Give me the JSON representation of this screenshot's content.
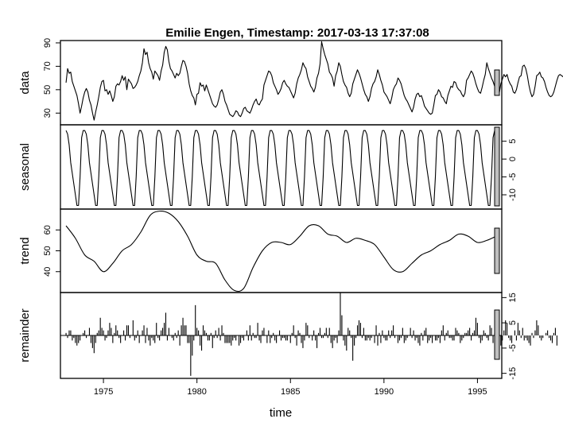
{
  "chart_data": {
    "type": "line",
    "title": "Emilie Engen, Timestamp: 2017-03-13 17:37:08",
    "xlabel": "time",
    "x_start": 1973.0,
    "x_end": 1996.0,
    "xlim": [
      1972.7,
      1996.3
    ],
    "x_ticks": [
      1975,
      1980,
      1985,
      1990,
      1995
    ],
    "panels": [
      {
        "name": "data",
        "kind": "line",
        "ylim": [
          20,
          92
        ],
        "y_ticks": [
          30,
          50,
          70,
          90
        ],
        "values": [
          56,
          68,
          64,
          65,
          57,
          53,
          49,
          45,
          38,
          30,
          36,
          43,
          48,
          51,
          48,
          41,
          37,
          30,
          24,
          31,
          37,
          44,
          52,
          57,
          58,
          49,
          50,
          46,
          49,
          45,
          40,
          44,
          53,
          55,
          54,
          57,
          62,
          58,
          61,
          50,
          59,
          57,
          55,
          51,
          52,
          54,
          57,
          62,
          66,
          73,
          85,
          80,
          82,
          73,
          68,
          65,
          59,
          66,
          64,
          62,
          58,
          66,
          71,
          82,
          87,
          84,
          74,
          68,
          66,
          63,
          60,
          64,
          62,
          64,
          70,
          75,
          74,
          70,
          64,
          55,
          49,
          45,
          43,
          37,
          46,
          47,
          56,
          53,
          54,
          49,
          54,
          50,
          46,
          42,
          38,
          36,
          35,
          37,
          42,
          48,
          50,
          46,
          40,
          37,
          33,
          29,
          28,
          27,
          29,
          32,
          31,
          28,
          27,
          30,
          34,
          35,
          32,
          31,
          30,
          33,
          37,
          40,
          42,
          38,
          37,
          40,
          42,
          54,
          58,
          62,
          66,
          65,
          62,
          56,
          53,
          50,
          46,
          48,
          51,
          56,
          58,
          55,
          53,
          52,
          49,
          46,
          43,
          47,
          55,
          60,
          63,
          67,
          73,
          70,
          68,
          61,
          57,
          53,
          51,
          48,
          52,
          60,
          64,
          72,
          91,
          85,
          80,
          76,
          72,
          65,
          63,
          60,
          53,
          62,
          66,
          73,
          70,
          63,
          57,
          54,
          52,
          47,
          44,
          47,
          55,
          59,
          63,
          67,
          64,
          60,
          55,
          50,
          46,
          44,
          40,
          44,
          51,
          55,
          57,
          61,
          67,
          63,
          58,
          54,
          48,
          46,
          44,
          41,
          38,
          43,
          50,
          53,
          55,
          60,
          58,
          55,
          50,
          45,
          42,
          40,
          37,
          34,
          31,
          35,
          42,
          46,
          47,
          44,
          45,
          41,
          36,
          34,
          32,
          30,
          29,
          30,
          37,
          45,
          46,
          50,
          48,
          44,
          43,
          40,
          38,
          45,
          49,
          53,
          52,
          57,
          56,
          52,
          50,
          49,
          46,
          44,
          47,
          58,
          60,
          63,
          66,
          64,
          60,
          55,
          51,
          48,
          47,
          52,
          58,
          63,
          73,
          68,
          64,
          60,
          57,
          53,
          49,
          46,
          47,
          55,
          59,
          63,
          61,
          63,
          58,
          55,
          53,
          48,
          47,
          50,
          56,
          61,
          62,
          70,
          71,
          68,
          62,
          54,
          48,
          44,
          46,
          53,
          62,
          63,
          65,
          61,
          60,
          57,
          52,
          48,
          45,
          44,
          45,
          48,
          53,
          58,
          62,
          63,
          62,
          61,
          60,
          60,
          57,
          52,
          46,
          44
        ]
      },
      {
        "name": "seasonal",
        "kind": "line",
        "ylim": [
          -14,
          9.6
        ],
        "y_ticks": [
          5,
          0,
          -5,
          -10
        ],
        "period_values": [
          8,
          7,
          4,
          -1,
          -4,
          -7,
          -10,
          -13,
          -13,
          -5,
          6,
          8
        ]
      },
      {
        "name": "trend",
        "kind": "line",
        "ylim": [
          30,
          70
        ],
        "y_ticks": [
          40,
          50,
          60
        ],
        "knots": [
          [
            1973.0,
            62
          ],
          [
            1973.5,
            56
          ],
          [
            1974.0,
            48
          ],
          [
            1974.5,
            45
          ],
          [
            1975.0,
            40
          ],
          [
            1975.5,
            44
          ],
          [
            1976.0,
            50
          ],
          [
            1976.5,
            53
          ],
          [
            1977.0,
            59
          ],
          [
            1977.5,
            67
          ],
          [
            1978.0,
            69
          ],
          [
            1978.5,
            68
          ],
          [
            1979.0,
            64
          ],
          [
            1979.5,
            57
          ],
          [
            1980.0,
            48
          ],
          [
            1980.5,
            45
          ],
          [
            1981.0,
            44
          ],
          [
            1981.5,
            36
          ],
          [
            1982.0,
            31
          ],
          [
            1982.5,
            32
          ],
          [
            1983.0,
            42
          ],
          [
            1983.5,
            50
          ],
          [
            1984.0,
            54
          ],
          [
            1984.5,
            54
          ],
          [
            1985.0,
            53
          ],
          [
            1985.5,
            57
          ],
          [
            1986.0,
            62
          ],
          [
            1986.5,
            62
          ],
          [
            1987.0,
            58
          ],
          [
            1987.5,
            57
          ],
          [
            1988.0,
            54
          ],
          [
            1988.5,
            56
          ],
          [
            1989.0,
            55
          ],
          [
            1989.5,
            53
          ],
          [
            1990.0,
            47
          ],
          [
            1990.5,
            41
          ],
          [
            1991.0,
            40
          ],
          [
            1991.5,
            44
          ],
          [
            1992.0,
            48
          ],
          [
            1992.5,
            50
          ],
          [
            1993.0,
            53
          ],
          [
            1993.5,
            55
          ],
          [
            1994.0,
            58
          ],
          [
            1994.5,
            57
          ],
          [
            1995.0,
            54
          ],
          [
            1995.5,
            55
          ],
          [
            1996.0,
            57
          ]
        ]
      },
      {
        "name": "remainder",
        "kind": "bar",
        "ylim": [
          -17,
          17
        ],
        "y_ticks": [
          15,
          5,
          -5,
          -15
        ],
        "values": [
          1,
          -1,
          2,
          2,
          -2,
          -1,
          -3,
          -4,
          -3,
          -2,
          0,
          1,
          2,
          -1,
          0,
          3,
          -3,
          -5,
          -7,
          -3,
          1,
          2,
          7,
          3,
          2,
          -2,
          -1,
          2,
          5,
          3,
          -3,
          1,
          4,
          2,
          -1,
          -3,
          0,
          2,
          -2,
          4,
          4,
          -1,
          0,
          6,
          -2,
          -1,
          2,
          -3,
          0,
          2,
          4,
          -3,
          3,
          -2,
          -4,
          -1,
          -2,
          -3,
          5,
          -1,
          -2,
          2,
          3,
          5,
          9,
          -2,
          3,
          0,
          -1,
          -2,
          1,
          -1,
          2,
          -4,
          4,
          7,
          4,
          4,
          -3,
          -3,
          -16,
          -8,
          -2,
          12,
          3,
          2,
          -4,
          -6,
          4,
          2,
          1,
          -2,
          -2,
          1,
          -5,
          -1,
          2,
          -1,
          3,
          -2,
          4,
          1,
          -3,
          -3,
          -3,
          -3,
          -4,
          -2,
          -1,
          -2,
          0,
          -4,
          -3,
          -1,
          -2,
          0,
          2,
          -2,
          4,
          -2,
          1,
          -1,
          -1,
          5,
          -2,
          -3,
          2,
          3,
          0,
          -3,
          2,
          -3,
          -1,
          1,
          -2,
          -3,
          0,
          2,
          -2,
          -1,
          -1,
          -2,
          -2,
          0,
          -3,
          1,
          4,
          -1,
          -4,
          2,
          1,
          -3,
          -5,
          -2,
          5,
          4,
          -1,
          0,
          -2,
          2,
          -2,
          -5,
          1,
          3,
          -1,
          -1,
          1,
          3,
          -1,
          3,
          -3,
          -5,
          -2,
          -1,
          -3,
          2,
          17,
          8,
          -2,
          -4,
          -6,
          3,
          2,
          -1,
          -10,
          -4,
          -1,
          4,
          6,
          5,
          -1,
          3,
          -2,
          -2,
          -1,
          -2,
          -1,
          0,
          -3,
          4,
          -4,
          1,
          -3,
          2,
          -1,
          -2,
          -2,
          2,
          -1,
          2,
          4,
          -1,
          0,
          -3,
          -2,
          -1,
          3,
          -3,
          -2,
          -1,
          0,
          3,
          -1,
          2,
          -2,
          -1,
          -3,
          -4,
          1,
          -2,
          2,
          3,
          -3,
          -2,
          -1,
          -3,
          0,
          -2,
          -2,
          -1,
          -3,
          2,
          4,
          -2,
          1,
          2,
          -1,
          -1,
          -2,
          -2,
          3,
          2,
          1,
          -3,
          -2,
          -1,
          1,
          1,
          2,
          3,
          -2,
          1,
          2,
          7,
          5,
          -1,
          -3,
          -2,
          2,
          1,
          -1,
          -2,
          4,
          3,
          -3,
          1,
          -1,
          -2,
          1,
          -4,
          -2,
          2,
          6,
          5,
          -1,
          -2,
          -3,
          0,
          2,
          -2,
          5,
          2,
          -1,
          3,
          -2,
          -1,
          -2,
          -3,
          -4,
          1,
          -1,
          2,
          6,
          4,
          -1,
          -2,
          -1,
          0,
          1,
          2,
          -1,
          -2,
          -3,
          1,
          3,
          -4
        ]
      }
    ]
  }
}
